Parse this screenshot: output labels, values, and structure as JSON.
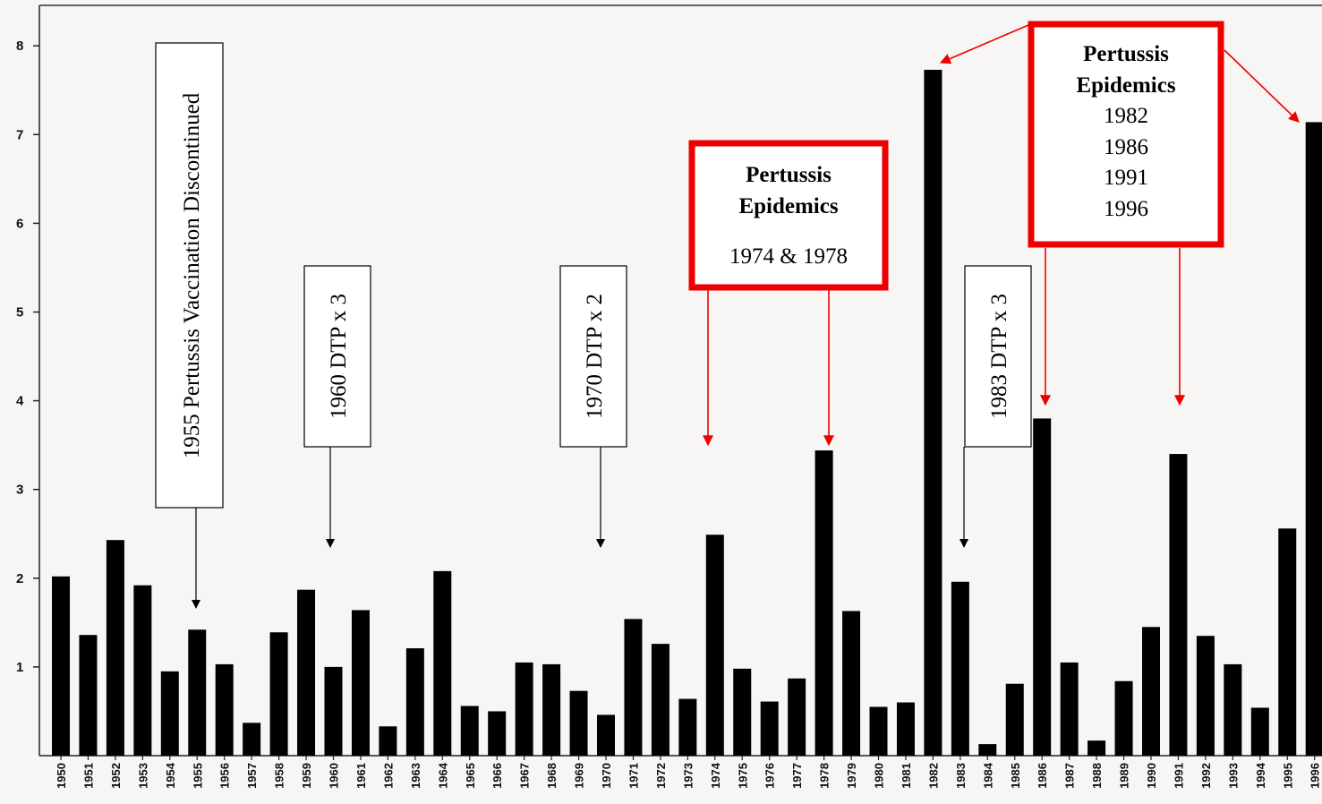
{
  "chart_data": {
    "type": "bar",
    "title": "",
    "xlabel": "",
    "ylabel": "",
    "ylim": [
      0,
      8.5
    ],
    "y_ticks": [
      1,
      2,
      3,
      4,
      5,
      6,
      7,
      8
    ],
    "grid": false,
    "categories": [
      "1950",
      "1951",
      "1952",
      "1953",
      "1954",
      "1955",
      "1956",
      "1957",
      "1958",
      "1959",
      "1960",
      "1961",
      "1962",
      "1963",
      "1964",
      "1965",
      "1966",
      "1967",
      "1968",
      "1969",
      "1970",
      "1971",
      "1972",
      "1973",
      "1974",
      "1975",
      "1976",
      "1977",
      "1978",
      "1979",
      "1980",
      "1981",
      "1982",
      "1983",
      "1984",
      "1985",
      "1986",
      "1987",
      "1988",
      "1989",
      "1990",
      "1991",
      "1992",
      "1993",
      "1994",
      "1995",
      "1996"
    ],
    "values": [
      2.02,
      1.36,
      2.43,
      1.92,
      0.95,
      1.42,
      1.03,
      0.37,
      1.39,
      1.87,
      1.0,
      1.64,
      0.33,
      1.21,
      2.08,
      0.56,
      0.5,
      1.05,
      1.03,
      0.73,
      0.46,
      1.54,
      1.26,
      0.64,
      2.49,
      0.98,
      0.61,
      0.87,
      3.44,
      1.63,
      0.55,
      0.6,
      7.73,
      1.96,
      0.13,
      0.81,
      3.8,
      1.05,
      0.17,
      0.84,
      1.45,
      3.4,
      1.35,
      1.03,
      0.54,
      2.56,
      7.14
    ],
    "bar_color": "#000000",
    "annotations": {
      "vaccination_1955": "1955 Pertussis Vaccination Discontinued",
      "dtp_1960": "1960 DTP x 3",
      "dtp_1970": "1970 DTP x 2",
      "dtp_1983": "1983 DTP x 3",
      "epidemic_box_1": {
        "title_line1": "Pertussis",
        "title_line2": "Epidemics",
        "years": "1974 & 1978"
      },
      "epidemic_box_2": {
        "title_line1": "Pertussis",
        "title_line2": "Epidemics",
        "year1": "1982",
        "year2": "1986",
        "year3": "1991",
        "year4": "1996"
      }
    },
    "highlight_color": "#ff0000"
  }
}
